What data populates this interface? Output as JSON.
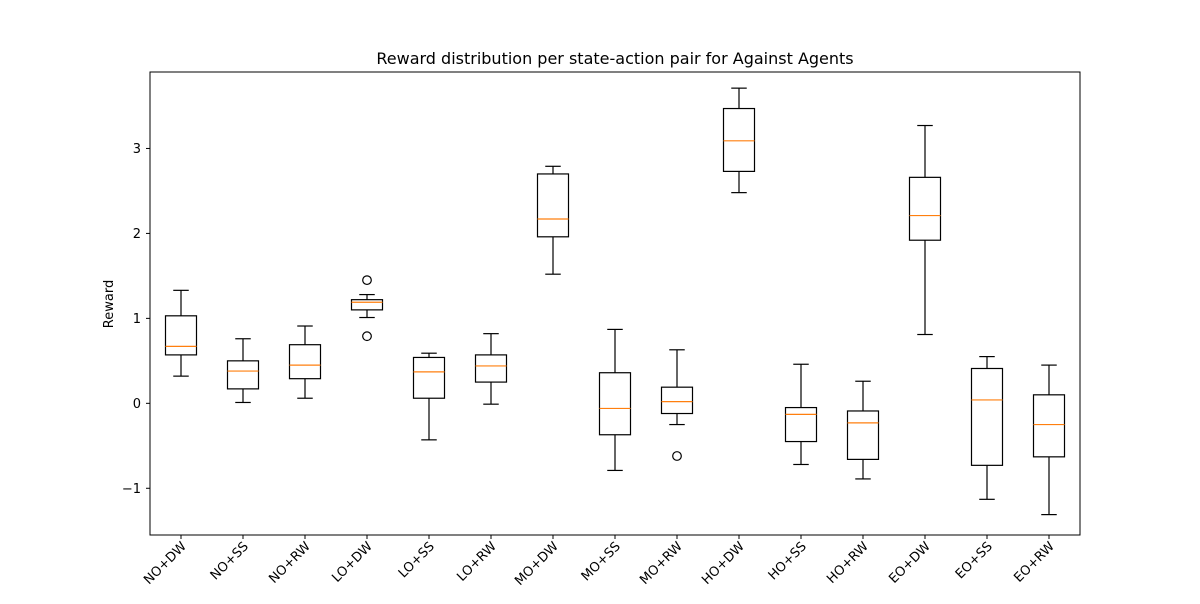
{
  "chart_data": {
    "type": "box",
    "title": "Reward distribution per state-action pair for Against Agents",
    "xlabel": "",
    "ylabel": "Reward",
    "ylim": [
      -1.55,
      3.9
    ],
    "yticks": [
      -1,
      0,
      1,
      2,
      3
    ],
    "ytick_labels": [
      "−1",
      "0",
      "1",
      "2",
      "3"
    ],
    "grid": false,
    "colors": {
      "box": "#000000",
      "median": "#ff7f0e",
      "background": "#ffffff"
    },
    "categories": [
      "NO+DW",
      "NO+SS",
      "NO+RW",
      "LO+DW",
      "LO+SS",
      "LO+RW",
      "MO+DW",
      "MO+SS",
      "MO+RW",
      "HO+DW",
      "HO+SS",
      "HO+RW",
      "EO+DW",
      "EO+SS",
      "EO+RW"
    ],
    "boxes": [
      {
        "label": "NO+DW",
        "whisker_low": 0.32,
        "q1": 0.57,
        "median": 0.67,
        "q3": 1.03,
        "whisker_high": 1.33,
        "outliers": []
      },
      {
        "label": "NO+SS",
        "whisker_low": 0.01,
        "q1": 0.17,
        "median": 0.38,
        "q3": 0.5,
        "whisker_high": 0.76,
        "outliers": []
      },
      {
        "label": "NO+RW",
        "whisker_low": 0.06,
        "q1": 0.29,
        "median": 0.45,
        "q3": 0.69,
        "whisker_high": 0.91,
        "outliers": []
      },
      {
        "label": "LO+DW",
        "whisker_low": 1.01,
        "q1": 1.1,
        "median": 1.19,
        "q3": 1.22,
        "whisker_high": 1.28,
        "outliers": [
          1.45,
          0.79
        ]
      },
      {
        "label": "LO+SS",
        "whisker_low": -0.43,
        "q1": 0.06,
        "median": 0.37,
        "q3": 0.54,
        "whisker_high": 0.59,
        "outliers": []
      },
      {
        "label": "LO+RW",
        "whisker_low": -0.01,
        "q1": 0.25,
        "median": 0.44,
        "q3": 0.57,
        "whisker_high": 0.82,
        "outliers": []
      },
      {
        "label": "MO+DW",
        "whisker_low": 1.52,
        "q1": 1.96,
        "median": 2.17,
        "q3": 2.7,
        "whisker_high": 2.79,
        "outliers": []
      },
      {
        "label": "MO+SS",
        "whisker_low": -0.79,
        "q1": -0.37,
        "median": -0.06,
        "q3": 0.36,
        "whisker_high": 0.87,
        "outliers": []
      },
      {
        "label": "MO+RW",
        "whisker_low": -0.25,
        "q1": -0.12,
        "median": 0.02,
        "q3": 0.19,
        "whisker_high": 0.63,
        "outliers": [
          -0.62
        ]
      },
      {
        "label": "HO+DW",
        "whisker_low": 2.48,
        "q1": 2.73,
        "median": 3.09,
        "q3": 3.47,
        "whisker_high": 3.71,
        "outliers": []
      },
      {
        "label": "HO+SS",
        "whisker_low": -0.72,
        "q1": -0.45,
        "median": -0.13,
        "q3": -0.05,
        "whisker_high": 0.46,
        "outliers": []
      },
      {
        "label": "HO+RW",
        "whisker_low": -0.89,
        "q1": -0.66,
        "median": -0.23,
        "q3": -0.09,
        "whisker_high": 0.26,
        "outliers": []
      },
      {
        "label": "EO+DW",
        "whisker_low": 0.81,
        "q1": 1.92,
        "median": 2.21,
        "q3": 2.66,
        "whisker_high": 3.27,
        "outliers": []
      },
      {
        "label": "EO+SS",
        "whisker_low": -1.13,
        "q1": -0.73,
        "median": 0.04,
        "q3": 0.41,
        "whisker_high": 0.55,
        "outliers": []
      },
      {
        "label": "EO+RW",
        "whisker_low": -1.31,
        "q1": -0.63,
        "median": -0.25,
        "q3": 0.1,
        "whisker_high": 0.45,
        "outliers": []
      }
    ]
  }
}
